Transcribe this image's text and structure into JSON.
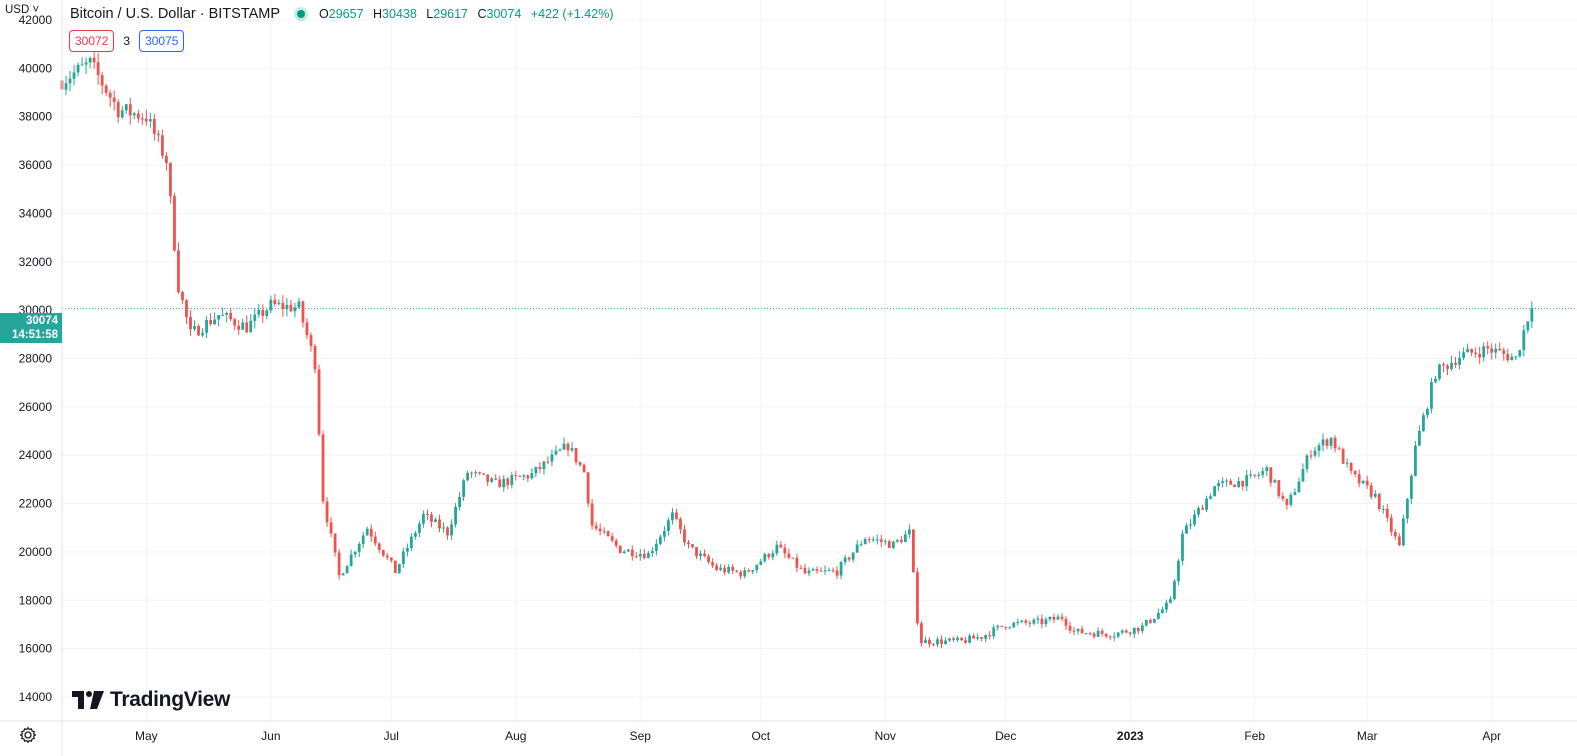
{
  "header": {
    "symbol_title": "Bitcoin / U.S. Dollar · BITSTAMP",
    "open_label": "O",
    "open_value": "29657",
    "high_label": "H",
    "high_value": "30438",
    "low_label": "L",
    "low_value": "29617",
    "close_label": "C",
    "close_value": "30074",
    "change_value": "+422 (+1.42%)",
    "bid": "30072",
    "spread": "3",
    "ask": "30075",
    "currency": "USD"
  },
  "price_tag": {
    "price": "30074",
    "countdown": "14:51:58"
  },
  "branding": {
    "logo_text": "TradingView"
  },
  "colors": {
    "up": "#26a69a",
    "down": "#ef5350",
    "grid": "#f0f3fa",
    "price_line": "#26a69a"
  },
  "chart_data": {
    "type": "candlestick",
    "title": "Bitcoin / U.S. Dollar · BITSTAMP",
    "yaxis_ticks": [
      14000,
      16000,
      18000,
      20000,
      22000,
      24000,
      26000,
      28000,
      30000,
      32000,
      34000,
      36000,
      38000,
      40000,
      42000
    ],
    "ylim": [
      13000,
      43000
    ],
    "x_ticks": [
      {
        "label": "May",
        "date": "2022-05-01"
      },
      {
        "label": "Jun",
        "date": "2022-06-01"
      },
      {
        "label": "Jul",
        "date": "2022-07-01"
      },
      {
        "label": "Aug",
        "date": "2022-08-01"
      },
      {
        "label": "Sep",
        "date": "2022-09-01"
      },
      {
        "label": "Oct",
        "date": "2022-10-01"
      },
      {
        "label": "Nov",
        "date": "2022-11-01"
      },
      {
        "label": "Dec",
        "date": "2022-12-01"
      },
      {
        "label": "2023",
        "date": "2023-01-01",
        "bold": true
      },
      {
        "label": "Feb",
        "date": "2023-02-01"
      },
      {
        "label": "Mar",
        "date": "2023-03-01"
      },
      {
        "label": "Apr",
        "date": "2023-04-01"
      }
    ],
    "xlim": [
      "2022-04-10",
      "2023-04-20"
    ],
    "last_price": 30074,
    "weekly_close_path": [
      [
        "2022-04-10",
        39500
      ],
      [
        "2022-04-17",
        40200
      ],
      [
        "2022-04-24",
        38300
      ],
      [
        "2022-05-01",
        38000
      ],
      [
        "2022-05-06",
        36200
      ],
      [
        "2022-05-09",
        31000
      ],
      [
        "2022-05-12",
        29000
      ],
      [
        "2022-05-19",
        29800
      ],
      [
        "2022-05-26",
        29300
      ],
      [
        "2022-06-01",
        30200
      ],
      [
        "2022-06-08",
        30100
      ],
      [
        "2022-06-12",
        27800
      ],
      [
        "2022-06-14",
        22200
      ],
      [
        "2022-06-18",
        19000
      ],
      [
        "2022-06-25",
        21000
      ],
      [
        "2022-07-02",
        19200
      ],
      [
        "2022-07-09",
        21500
      ],
      [
        "2022-07-15",
        20800
      ],
      [
        "2022-07-20",
        23300
      ],
      [
        "2022-07-27",
        22800
      ],
      [
        "2022-08-05",
        23200
      ],
      [
        "2022-08-14",
        24400
      ],
      [
        "2022-08-18",
        23300
      ],
      [
        "2022-08-20",
        21100
      ],
      [
        "2022-08-27",
        20100
      ],
      [
        "2022-09-03",
        19900
      ],
      [
        "2022-09-09",
        21500
      ],
      [
        "2022-09-13",
        20200
      ],
      [
        "2022-09-20",
        19300
      ],
      [
        "2022-09-27",
        19100
      ],
      [
        "2022-10-05",
        20200
      ],
      [
        "2022-10-12",
        19100
      ],
      [
        "2022-10-20",
        19200
      ],
      [
        "2022-10-27",
        20600
      ],
      [
        "2022-11-03",
        20300
      ],
      [
        "2022-11-07",
        20800
      ],
      [
        "2022-11-09",
        17200
      ],
      [
        "2022-11-10",
        16300
      ],
      [
        "2022-11-20",
        16300
      ],
      [
        "2022-11-25",
        16500
      ],
      [
        "2022-12-01",
        17000
      ],
      [
        "2022-12-10",
        17100
      ],
      [
        "2022-12-15",
        17300
      ],
      [
        "2022-12-18",
        16700
      ],
      [
        "2022-12-28",
        16600
      ],
      [
        "2023-01-04",
        16900
      ],
      [
        "2023-01-11",
        17900
      ],
      [
        "2023-01-14",
        20700
      ],
      [
        "2023-01-22",
        22700
      ],
      [
        "2023-01-31",
        23000
      ],
      [
        "2023-02-04",
        23400
      ],
      [
        "2023-02-09",
        21800
      ],
      [
        "2023-02-15",
        24200
      ],
      [
        "2023-02-20",
        24700
      ],
      [
        "2023-02-25",
        23200
      ],
      [
        "2023-03-03",
        22300
      ],
      [
        "2023-03-09",
        20200
      ],
      [
        "2023-03-13",
        24300
      ],
      [
        "2023-03-18",
        27400
      ],
      [
        "2023-03-24",
        28100
      ],
      [
        "2023-03-31",
        28400
      ],
      [
        "2023-04-07",
        28000
      ],
      [
        "2023-04-10",
        29700
      ],
      [
        "2023-04-11",
        30074
      ]
    ]
  }
}
